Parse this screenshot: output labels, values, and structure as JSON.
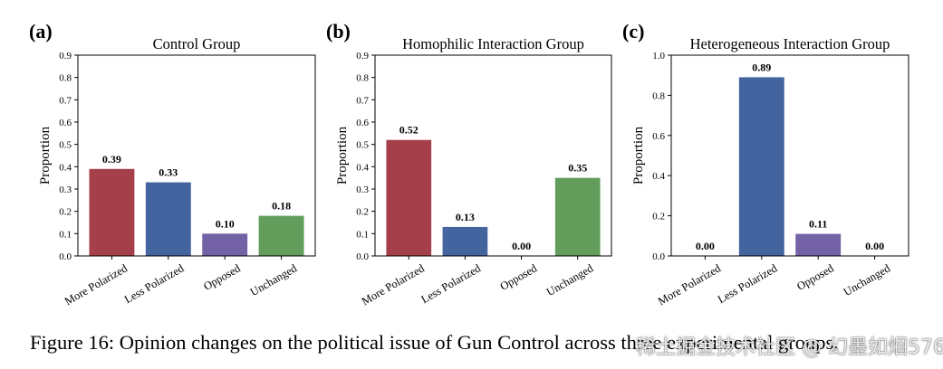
{
  "chart_data": [
    {
      "type": "bar",
      "panel_label": "(a)",
      "title": "Control Group",
      "ylabel": "Proportion",
      "xlabel": "",
      "ylim": [
        0,
        0.9
      ],
      "yticks": [
        "0.0",
        "0.1",
        "0.2",
        "0.3",
        "0.4",
        "0.5",
        "0.6",
        "0.7",
        "0.8",
        "0.9"
      ],
      "categories": [
        "More Polarized",
        "Less Polarized",
        "Opposed",
        "Unchanged"
      ],
      "values": [
        0.39,
        0.33,
        0.1,
        0.18
      ],
      "value_labels": [
        "0.39",
        "0.33",
        "0.10",
        "0.18"
      ],
      "colors": [
        "#a5404a",
        "#43649e",
        "#7462a6",
        "#629d5c"
      ],
      "grid": false
    },
    {
      "type": "bar",
      "panel_label": "(b)",
      "title": "Homophilic Interaction Group",
      "ylabel": "Proportion",
      "xlabel": "",
      "ylim": [
        0,
        0.9
      ],
      "yticks": [
        "0.0",
        "0.1",
        "0.2",
        "0.3",
        "0.4",
        "0.5",
        "0.6",
        "0.7",
        "0.8",
        "0.9"
      ],
      "categories": [
        "More Polarized",
        "Less Polarized",
        "Opposed",
        "Unchanged"
      ],
      "values": [
        0.52,
        0.13,
        0.0,
        0.35
      ],
      "value_labels": [
        "0.52",
        "0.13",
        "0.00",
        "0.35"
      ],
      "colors": [
        "#a5404a",
        "#43649e",
        "#7462a6",
        "#629d5c"
      ],
      "grid": false
    },
    {
      "type": "bar",
      "panel_label": "(c)",
      "title": "Heterogeneous Interaction Group",
      "ylabel": "Proportion",
      "xlabel": "",
      "ylim": [
        0,
        1.0
      ],
      "yticks": [
        "0.0",
        "0.2",
        "0.4",
        "0.6",
        "0.8",
        "1.0"
      ],
      "categories": [
        "More Polarized",
        "Less Polarized",
        "Opposed",
        "Unchanged"
      ],
      "values": [
        0.0,
        0.89,
        0.11,
        0.0
      ],
      "value_labels": [
        "0.00",
        "0.89",
        "0.11",
        "0.00"
      ],
      "colors": [
        "#a5404a",
        "#43649e",
        "#7462a6",
        "#629d5c"
      ],
      "grid": false
    }
  ],
  "caption": "Figure 16: Opinion changes on the political issue of Gun Control across three experimental groups.",
  "watermark": "稀土掘金技术社区 @ 幻墨如烟576"
}
